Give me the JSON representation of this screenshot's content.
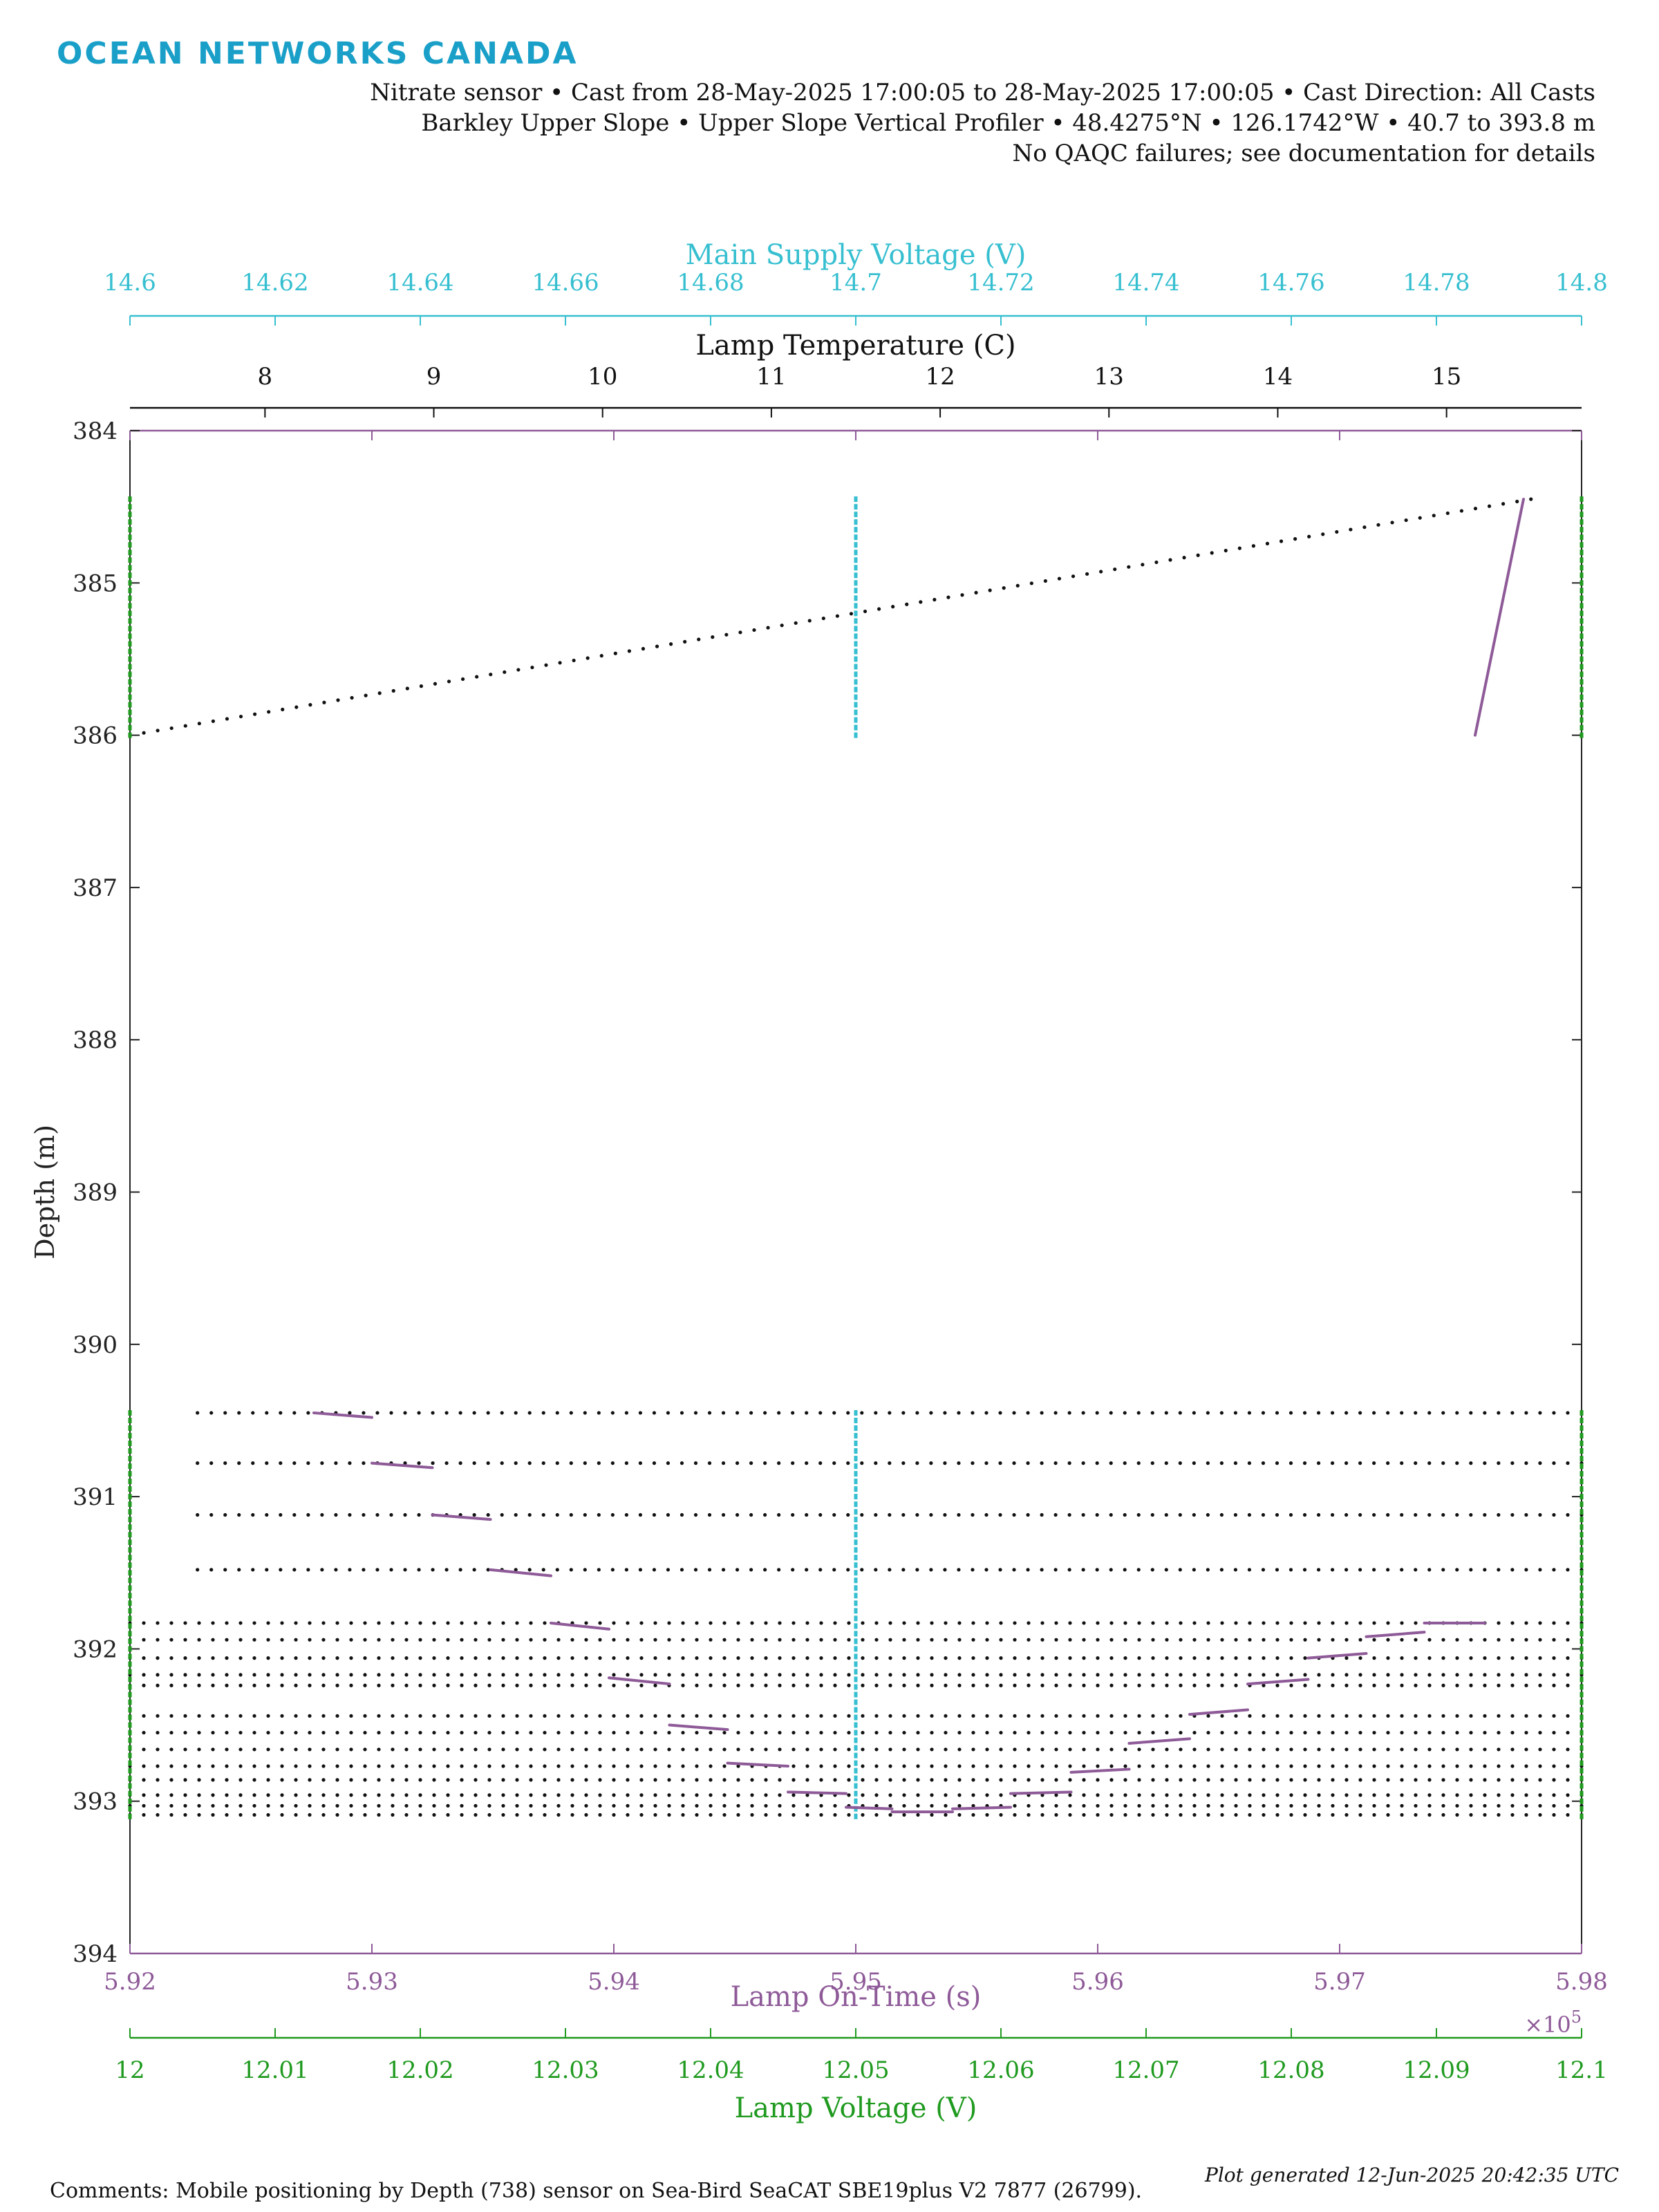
{
  "header": {
    "logo": "OCEAN NETWORKS CANADA",
    "line1": "Nitrate sensor • Cast from 28-May-2025 17:00:05 to 28-May-2025 17:00:05 • Cast Direction:  All Casts",
    "line2": "Barkley Upper Slope • Upper Slope Vertical Profiler • 48.4275°N • 126.1742°W • 40.7 to 393.8 m",
    "line3": "No QAQC failures; see documentation for details"
  },
  "footer": {
    "comments": "Comments: Mobile positioning by Depth (738) sensor on Sea-Bird SeaCAT SBE19plus V2 7877 (26799).",
    "generated": "Plot generated 12-Jun-2025 20:42:35 UTC"
  },
  "colors": {
    "supply_voltage": "#36bfd0",
    "lamp_temperature": "#111111",
    "lamp_on_time": "#8e5a98",
    "lamp_voltage": "#1f9a1f"
  },
  "chart_data": {
    "type": "scatter",
    "grid": false,
    "y_axis": {
      "label": "Depth (m)",
      "range": [
        384,
        394
      ],
      "reversed": true,
      "ticks": [
        "384",
        "385",
        "386",
        "387",
        "388",
        "389",
        "390",
        "391",
        "392",
        "393",
        "394"
      ]
    },
    "x_axes": [
      {
        "key": "supply_voltage",
        "label": "Main Supply Voltage (V)",
        "position": "top-outer",
        "range": [
          14.6,
          14.8
        ],
        "ticks": [
          "14.6",
          "14.62",
          "14.64",
          "14.66",
          "14.68",
          "14.7",
          "14.72",
          "14.74",
          "14.76",
          "14.78",
          "14.8"
        ]
      },
      {
        "key": "lamp_temperature",
        "label": "Lamp Temperature (C)",
        "position": "top-inner",
        "range": [
          7.2,
          15.8
        ],
        "ticks": [
          "8",
          "9",
          "10",
          "11",
          "12",
          "13",
          "14",
          "15"
        ]
      },
      {
        "key": "lamp_on_time",
        "label": "Lamp On-Time (s)",
        "position": "bottom-inner",
        "range": [
          5.92,
          5.98
        ],
        "multiplier": "×10^5",
        "ticks": [
          "5.92",
          "5.93",
          "5.94",
          "5.95",
          "5.96",
          "5.97",
          "5.98"
        ]
      },
      {
        "key": "lamp_voltage",
        "label": "Lamp Voltage (V)",
        "position": "bottom-outer",
        "range": [
          12,
          12.1
        ],
        "ticks": [
          "12",
          "12.01",
          "12.02",
          "12.03",
          "12.04",
          "12.05",
          "12.06",
          "12.07",
          "12.08",
          "12.09",
          "12.1"
        ]
      }
    ],
    "series": [
      {
        "name": "Main Supply Voltage (V)",
        "axis": "supply_voltage",
        "style": "points",
        "points": [
          {
            "x": 14.7,
            "depth_from": 384.45,
            "depth_to": 386.0
          },
          {
            "x": 14.7,
            "depth_from": 390.45,
            "depth_to": 393.1
          }
        ]
      },
      {
        "name": "Lamp Temperature (C)",
        "axis": "lamp_temperature",
        "style": "dotted-lines",
        "lines": [
          {
            "x_from": 7.2,
            "x_to": 15.5,
            "depth_from": 386.0,
            "depth_to": 384.45
          },
          {
            "x_from": 7.6,
            "x_to": 15.8,
            "depth": 390.45
          },
          {
            "x_from": 7.6,
            "x_to": 15.8,
            "depth": 390.78
          },
          {
            "x_from": 7.6,
            "x_to": 15.8,
            "depth": 391.12
          },
          {
            "x_from": 7.6,
            "x_to": 15.8,
            "depth": 391.48
          },
          {
            "x_from": 7.2,
            "x_to": 15.8,
            "depth": 391.83
          },
          {
            "x_from": 7.2,
            "x_to": 15.8,
            "depth": 391.94
          },
          {
            "x_from": 7.2,
            "x_to": 15.8,
            "depth": 392.06
          },
          {
            "x_from": 7.2,
            "x_to": 15.8,
            "depth": 392.17
          },
          {
            "x_from": 7.2,
            "x_to": 15.8,
            "depth": 392.24
          },
          {
            "x_from": 7.2,
            "x_to": 15.8,
            "depth": 392.44
          },
          {
            "x_from": 7.2,
            "x_to": 15.8,
            "depth": 392.55
          },
          {
            "x_from": 7.2,
            "x_to": 15.8,
            "depth": 392.66
          },
          {
            "x_from": 7.2,
            "x_to": 15.8,
            "depth": 392.77
          },
          {
            "x_from": 7.2,
            "x_to": 15.8,
            "depth": 392.86
          },
          {
            "x_from": 7.2,
            "x_to": 15.8,
            "depth": 392.96
          },
          {
            "x_from": 7.2,
            "x_to": 15.8,
            "depth": 393.03
          },
          {
            "x_from": 7.2,
            "x_to": 15.8,
            "depth": 393.09
          }
        ]
      },
      {
        "name": "Lamp On-Time (s)",
        "axis": "lamp_on_time",
        "style": "segments",
        "segments": [
          {
            "x1": 5.9776,
            "y1": 384.45,
            "x2": 5.9756,
            "y2": 386.0
          },
          {
            "x1": 5.9276,
            "y1": 390.45,
            "x2": 5.93,
            "y2": 390.48
          },
          {
            "x1": 5.93,
            "y1": 390.78,
            "x2": 5.9325,
            "y2": 390.81
          },
          {
            "x1": 5.9325,
            "y1": 391.12,
            "x2": 5.9349,
            "y2": 391.15
          },
          {
            "x1": 5.9349,
            "y1": 391.48,
            "x2": 5.9374,
            "y2": 391.52
          },
          {
            "x1": 5.9374,
            "y1": 391.83,
            "x2": 5.9398,
            "y2": 391.87
          },
          {
            "x1": 5.9398,
            "y1": 392.19,
            "x2": 5.9423,
            "y2": 392.23
          },
          {
            "x1": 5.9423,
            "y1": 392.5,
            "x2": 5.9447,
            "y2": 392.53
          },
          {
            "x1": 5.9447,
            "y1": 392.75,
            "x2": 5.9472,
            "y2": 392.77
          },
          {
            "x1": 5.9472,
            "y1": 392.94,
            "x2": 5.9496,
            "y2": 392.95
          },
          {
            "x1": 5.9496,
            "y1": 393.04,
            "x2": 5.9515,
            "y2": 393.05
          },
          {
            "x1": 5.9515,
            "y1": 393.07,
            "x2": 5.954,
            "y2": 393.07
          },
          {
            "x1": 5.954,
            "y1": 393.05,
            "x2": 5.9564,
            "y2": 393.04
          },
          {
            "x1": 5.9564,
            "y1": 392.95,
            "x2": 5.9589,
            "y2": 392.94
          },
          {
            "x1": 5.9589,
            "y1": 392.81,
            "x2": 5.9613,
            "y2": 392.79
          },
          {
            "x1": 5.9613,
            "y1": 392.62,
            "x2": 5.9638,
            "y2": 392.59
          },
          {
            "x1": 5.9638,
            "y1": 392.43,
            "x2": 5.9662,
            "y2": 392.4
          },
          {
            "x1": 5.9662,
            "y1": 392.23,
            "x2": 5.9687,
            "y2": 392.2
          },
          {
            "x1": 5.9687,
            "y1": 392.06,
            "x2": 5.9711,
            "y2": 392.03
          },
          {
            "x1": 5.9711,
            "y1": 391.92,
            "x2": 5.9735,
            "y2": 391.89
          },
          {
            "x1": 5.9735,
            "y1": 391.83,
            "x2": 5.976,
            "y2": 391.83
          }
        ]
      },
      {
        "name": "Lamp Voltage (V)",
        "axis": "lamp_voltage",
        "style": "points",
        "points": [
          {
            "x": 12.0,
            "depth_from": 384.45,
            "depth_to": 386.0
          },
          {
            "x": 12.1,
            "depth_from": 384.45,
            "depth_to": 386.0
          },
          {
            "x": 12.0,
            "depth_from": 390.45,
            "depth_to": 393.1
          },
          {
            "x": 12.1,
            "depth_from": 390.45,
            "depth_to": 393.1
          }
        ]
      }
    ]
  }
}
